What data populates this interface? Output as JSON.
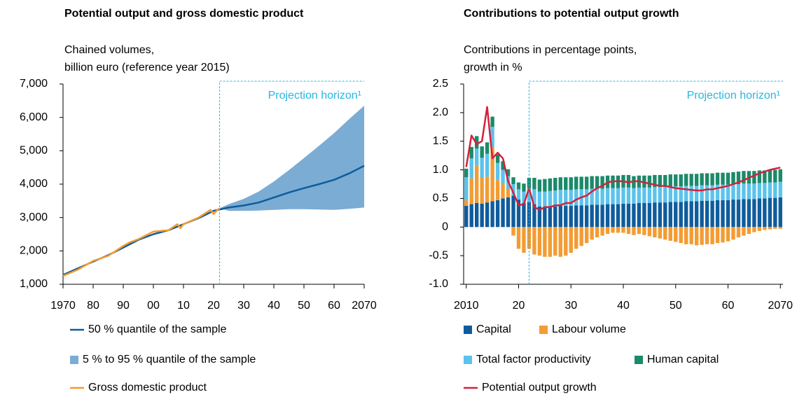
{
  "chart_data": [
    {
      "type": "line",
      "title": "Potential output and gross domestic product",
      "subtitle_lines": [
        "Chained volumes,",
        "billion euro (reference year 2015)"
      ],
      "annotation": "Projection horizon¹",
      "projection_start": 2022,
      "xlim": [
        1970,
        2070
      ],
      "xticks": [
        1970,
        {
          "value": 1980,
          "label": "80"
        },
        {
          "value": 1990,
          "label": "90"
        },
        {
          "value": 2000,
          "label": "00"
        },
        {
          "value": 2010,
          "label": "10"
        },
        {
          "value": 2020,
          "label": "20"
        },
        {
          "value": 2030,
          "label": "30"
        },
        {
          "value": 2040,
          "label": "40"
        },
        {
          "value": 2050,
          "label": "50"
        },
        {
          "value": 2060,
          "label": "60"
        },
        2070
      ],
      "ylim": [
        1000,
        7000
      ],
      "yticks": [
        {
          "value": 1000,
          "label": "1,000"
        },
        {
          "value": 2000,
          "label": "2,000"
        },
        {
          "value": 3000,
          "label": "3,000"
        },
        {
          "value": 4000,
          "label": "4,000"
        },
        {
          "value": 5000,
          "label": "5,000"
        },
        {
          "value": 6000,
          "label": "6,000"
        },
        {
          "value": 7000,
          "label": "7,000"
        }
      ],
      "legend": "bottom",
      "series": [
        {
          "name": "50 % quantile of the sample",
          "color": "#0f5c9c",
          "x": [
            1970,
            1975,
            1980,
            1985,
            1990,
            1995,
            2000,
            2005,
            2010,
            2015,
            2020,
            2025,
            2030,
            2035,
            2040,
            2045,
            2050,
            2055,
            2060,
            2065,
            2070
          ],
          "values": [
            1280,
            1480,
            1680,
            1870,
            2100,
            2330,
            2500,
            2620,
            2800,
            2980,
            3200,
            3300,
            3360,
            3450,
            3600,
            3750,
            3880,
            4000,
            4130,
            4320,
            4550
          ]
        },
        {
          "name": "5 % to 95 % quantile of the sample",
          "color": "#7bacd4",
          "type": "band",
          "x": [
            2022,
            2025,
            2030,
            2035,
            2040,
            2045,
            2050,
            2055,
            2060,
            2065,
            2070
          ],
          "lower": [
            3280,
            3200,
            3200,
            3210,
            3230,
            3250,
            3250,
            3240,
            3230,
            3260,
            3300
          ],
          "upper": [
            3280,
            3400,
            3560,
            3780,
            4080,
            4420,
            4780,
            5150,
            5530,
            5950,
            6350
          ]
        },
        {
          "name": "Gross domestic product",
          "color": "#f39c33",
          "x": [
            1970,
            1975,
            1980,
            1985,
            1990,
            1992,
            1995,
            2000,
            2005,
            2008,
            2009,
            2010,
            2015,
            2019,
            2020,
            2021,
            2022
          ],
          "values": [
            1250,
            1440,
            1700,
            1850,
            2150,
            2250,
            2350,
            2580,
            2620,
            2800,
            2680,
            2800,
            3000,
            3230,
            3100,
            3200,
            3280
          ]
        }
      ]
    },
    {
      "type": "bar",
      "stacked": true,
      "title": "Contributions to potential output growth",
      "subtitle_lines": [
        "Contributions in percentage points,",
        "growth in %"
      ],
      "annotation": "Projection horizon¹",
      "projection_start": 2022,
      "xlim": [
        2009.5,
        2070.5
      ],
      "xticks": [
        2010,
        {
          "value": 2020,
          "label": "20"
        },
        {
          "value": 2030,
          "label": "30"
        },
        {
          "value": 2040,
          "label": "40"
        },
        {
          "value": 2050,
          "label": "50"
        },
        {
          "value": 2060,
          "label": "60"
        },
        2070
      ],
      "ylim": [
        -1,
        2.5
      ],
      "yticks": [
        {
          "value": -1,
          "label": "-1.0"
        },
        -0.5,
        0,
        0.5,
        {
          "value": 1,
          "label": "1.0"
        },
        1.5,
        {
          "value": 2,
          "label": "2.0"
        },
        2.5
      ],
      "legend": "bottom",
      "x": [
        2010,
        2011,
        2012,
        2013,
        2014,
        2015,
        2016,
        2017,
        2018,
        2019,
        2020,
        2021,
        2022,
        2023,
        2024,
        2025,
        2026,
        2027,
        2028,
        2029,
        2030,
        2031,
        2032,
        2033,
        2034,
        2035,
        2036,
        2037,
        2038,
        2039,
        2040,
        2041,
        2042,
        2043,
        2044,
        2045,
        2046,
        2047,
        2048,
        2049,
        2050,
        2051,
        2052,
        2053,
        2054,
        2055,
        2056,
        2057,
        2058,
        2059,
        2060,
        2061,
        2062,
        2063,
        2064,
        2065,
        2066,
        2067,
        2068,
        2069,
        2070
      ],
      "series": [
        {
          "name": "Capital",
          "color": "#0f5c9c",
          "values": [
            0.37,
            0.4,
            0.42,
            0.41,
            0.43,
            0.45,
            0.47,
            0.5,
            0.52,
            0.55,
            0.48,
            0.42,
            0.44,
            0.4,
            0.36,
            0.35,
            0.36,
            0.36,
            0.37,
            0.37,
            0.37,
            0.38,
            0.38,
            0.38,
            0.39,
            0.39,
            0.39,
            0.4,
            0.4,
            0.4,
            0.41,
            0.41,
            0.41,
            0.42,
            0.42,
            0.42,
            0.43,
            0.43,
            0.43,
            0.44,
            0.44,
            0.44,
            0.45,
            0.45,
            0.45,
            0.46,
            0.46,
            0.46,
            0.47,
            0.47,
            0.47,
            0.48,
            0.48,
            0.49,
            0.49,
            0.49,
            0.5,
            0.5,
            0.51,
            0.51,
            0.52
          ]
        },
        {
          "name": "Labour volume",
          "color": "#f39c33",
          "values": [
            0.1,
            0.45,
            0.65,
            0.45,
            0.45,
            0.95,
            0.35,
            0.25,
            0.15,
            -0.15,
            -0.38,
            -0.45,
            -0.38,
            -0.48,
            -0.5,
            -0.52,
            -0.52,
            -0.5,
            -0.52,
            -0.5,
            -0.45,
            -0.38,
            -0.33,
            -0.28,
            -0.22,
            -0.18,
            -0.15,
            -0.12,
            -0.1,
            -0.1,
            -0.1,
            -0.12,
            -0.14,
            -0.12,
            -0.14,
            -0.16,
            -0.18,
            -0.2,
            -0.22,
            -0.24,
            -0.26,
            -0.28,
            -0.3,
            -0.3,
            -0.32,
            -0.31,
            -0.3,
            -0.3,
            -0.28,
            -0.27,
            -0.25,
            -0.22,
            -0.18,
            -0.15,
            -0.12,
            -0.09,
            -0.07,
            -0.05,
            -0.04,
            -0.03,
            -0.03
          ]
        },
        {
          "name": "Total factor productivity",
          "color": "#5bc3ec",
          "values": [
            0.4,
            0.35,
            0.3,
            0.35,
            0.4,
            0.35,
            0.3,
            0.25,
            0.22,
            0.2,
            0.18,
            0.2,
            0.24,
            0.26,
            0.26,
            0.27,
            0.27,
            0.28,
            0.28,
            0.28,
            0.28,
            0.28,
            0.28,
            0.28,
            0.28,
            0.28,
            0.28,
            0.28,
            0.28,
            0.28,
            0.28,
            0.28,
            0.27,
            0.27,
            0.27,
            0.27,
            0.27,
            0.27,
            0.27,
            0.27,
            0.27,
            0.27,
            0.27,
            0.27,
            0.27,
            0.27,
            0.27,
            0.27,
            0.27,
            0.27,
            0.27,
            0.27,
            0.27,
            0.27,
            0.27,
            0.27,
            0.27,
            0.27,
            0.27,
            0.27,
            0.27
          ]
        },
        {
          "name": "Human capital",
          "color": "#1a8a6a",
          "values": [
            0.15,
            0.2,
            0.22,
            0.2,
            0.2,
            0.18,
            0.15,
            0.15,
            0.12,
            0.12,
            0.12,
            0.14,
            0.18,
            0.2,
            0.21,
            0.22,
            0.22,
            0.22,
            0.22,
            0.22,
            0.22,
            0.22,
            0.22,
            0.22,
            0.22,
            0.22,
            0.22,
            0.22,
            0.22,
            0.22,
            0.22,
            0.22,
            0.21,
            0.21,
            0.21,
            0.21,
            0.21,
            0.21,
            0.21,
            0.21,
            0.21,
            0.21,
            0.21,
            0.21,
            0.21,
            0.21,
            0.21,
            0.21,
            0.21,
            0.21,
            0.21,
            0.21,
            0.22,
            0.22,
            0.22,
            0.22,
            0.22,
            0.22,
            0.22,
            0.22,
            0.22
          ]
        },
        {
          "name": "Potential output growth",
          "color": "#d2223c",
          "type": "line",
          "values": [
            1.05,
            1.6,
            1.45,
            1.5,
            2.1,
            1.2,
            1.3,
            1.2,
            0.8,
            0.6,
            0.38,
            0.4,
            0.68,
            0.35,
            0.3,
            0.35,
            0.35,
            0.38,
            0.38,
            0.42,
            0.42,
            0.48,
            0.52,
            0.55,
            0.62,
            0.68,
            0.72,
            0.78,
            0.8,
            0.8,
            0.8,
            0.78,
            0.8,
            0.8,
            0.78,
            0.76,
            0.74,
            0.72,
            0.72,
            0.7,
            0.68,
            0.67,
            0.66,
            0.65,
            0.64,
            0.64,
            0.66,
            0.66,
            0.68,
            0.7,
            0.72,
            0.75,
            0.78,
            0.82,
            0.86,
            0.9,
            0.94,
            0.97,
            1.0,
            1.02,
            1.04
          ]
        }
      ]
    }
  ]
}
